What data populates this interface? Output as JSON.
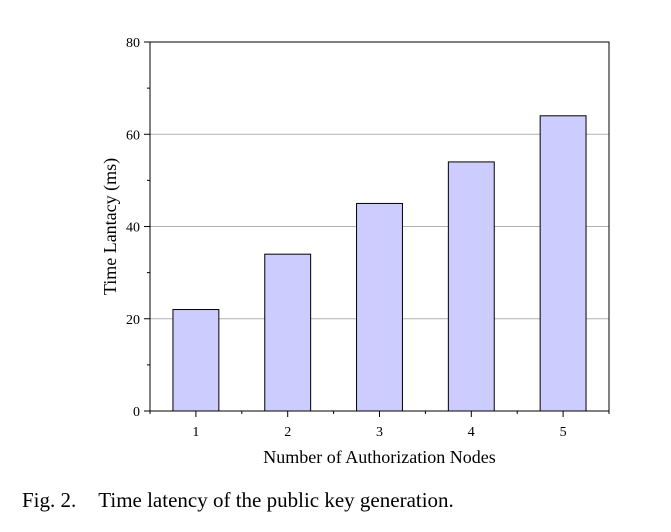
{
  "chart_data": {
    "type": "bar",
    "categories": [
      "1",
      "2",
      "3",
      "4",
      "5"
    ],
    "values": [
      22,
      34,
      45,
      54,
      64
    ],
    "xlabel": "Number of Authorization Nodes",
    "ylabel": "Time Lantacy (ms)",
    "ylim": [
      0,
      80
    ],
    "yticks": [
      0,
      20,
      40,
      60,
      80
    ],
    "grid": true,
    "bar_color": "#ccccff"
  },
  "caption": {
    "label": "Fig. 2.",
    "text": "Time latency of the public key generation."
  }
}
